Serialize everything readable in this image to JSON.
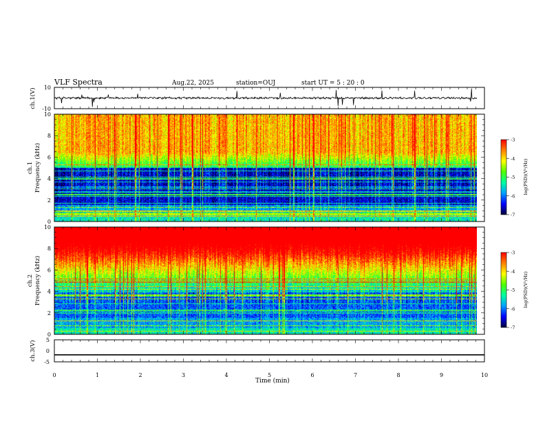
{
  "header": {
    "title": "VLF Spectra",
    "date": "Aug.22, 2025",
    "station": "station=OUJ",
    "start": "start UT = 5 : 20 : 0"
  },
  "chart_data": [
    {
      "type": "line",
      "ylabel": "ch.1(V)",
      "xlim": [
        0,
        10
      ],
      "ylim": [
        -10,
        10
      ],
      "y_ticks": [
        "10",
        "-10"
      ],
      "baseline": 0,
      "description_values": "noisy waveform around 0 V with spikes"
    },
    {
      "type": "heatmap",
      "ylabel_top": "ch.1",
      "ylabel": "Frequency (kHz)",
      "xlim": [
        0,
        9.83
      ],
      "ylim": [
        0,
        10
      ],
      "y_ticks": [
        "0",
        "2",
        "4",
        "6",
        "8",
        "10"
      ],
      "colorbar": {
        "label": "log(PSD)(V²/Hz)",
        "range": [
          -7,
          -3
        ],
        "ticks": [
          "-3",
          "-4",
          "-5",
          "-6",
          "-7"
        ]
      }
    },
    {
      "type": "heatmap",
      "ylabel_top": "ch.2",
      "ylabel": "Frequency (kHz)",
      "xlim": [
        0,
        9.83
      ],
      "ylim": [
        0,
        10
      ],
      "y_ticks": [
        "0",
        "2",
        "4",
        "6",
        "8",
        "10"
      ],
      "colorbar": {
        "label": "log(PSD)(V²/Hz)",
        "range": [
          -7,
          -3
        ],
        "ticks": [
          "-3",
          "-4",
          "-5",
          "-6",
          "-7"
        ]
      }
    },
    {
      "type": "line",
      "ylabel": "ch.3(V)",
      "xlim": [
        0,
        10
      ],
      "ylim": [
        -5,
        5
      ],
      "y_ticks": [
        "5",
        "0",
        "-5"
      ],
      "values": [
        -1.8,
        -1.8
      ]
    }
  ],
  "xaxis": {
    "label": "Time (min)",
    "ticks": [
      "0",
      "1",
      "2",
      "3",
      "4",
      "5",
      "6",
      "7",
      "8",
      "9",
      "10"
    ]
  },
  "colors": {
    "axis": "#000000",
    "colormap": [
      "#00003a",
      "#0000ff",
      "#00a0ff",
      "#00ffa0",
      "#50ff00",
      "#ffff00",
      "#ff8000",
      "#ff0000"
    ]
  }
}
